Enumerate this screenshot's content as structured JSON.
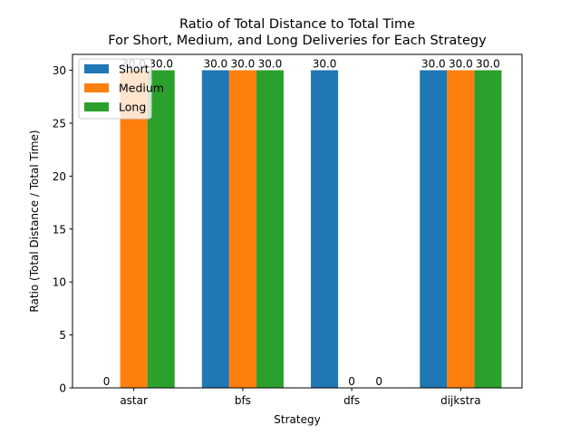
{
  "chart_data": {
    "type": "bar",
    "title_line1": "Ratio of Total Distance to Total Time",
    "title_line2": "For Short, Medium, and Long Deliveries for Each Strategy",
    "xlabel": "Strategy",
    "ylabel": "Ratio (Total Distance / Total Time)",
    "categories": [
      "astar",
      "bfs",
      "dfs",
      "dijkstra"
    ],
    "ylim": [
      0,
      31.5
    ],
    "yticks": [
      0,
      5,
      10,
      15,
      20,
      25,
      30
    ],
    "grid": false,
    "legend_position": "top-left",
    "series": [
      {
        "name": "Short",
        "color": "#1f77b4",
        "values": [
          0,
          30,
          30,
          30
        ],
        "labels": [
          "0",
          "30.0",
          "30.0",
          "30.0"
        ]
      },
      {
        "name": "Medium",
        "color": "#ff7f0e",
        "values": [
          30,
          30,
          0,
          30
        ],
        "labels": [
          "30.0",
          "30.0",
          "0",
          "30.0"
        ]
      },
      {
        "name": "Long",
        "color": "#2ca02c",
        "values": [
          30,
          30,
          0,
          30
        ],
        "labels": [
          "30.0",
          "30.0",
          "0",
          "30.0"
        ]
      }
    ]
  }
}
